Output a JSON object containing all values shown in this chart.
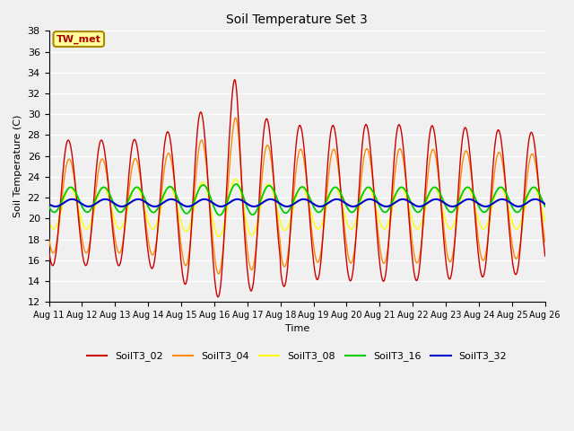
{
  "title": "Soil Temperature Set 3",
  "xlabel": "Time",
  "ylabel": "Soil Temperature (C)",
  "ylim": [
    12,
    38
  ],
  "yticks": [
    12,
    14,
    16,
    18,
    20,
    22,
    24,
    26,
    28,
    30,
    32,
    34,
    36,
    38
  ],
  "bg_color": "#f0f0f0",
  "plot_bg_color": "#f0f0f0",
  "series_colors": {
    "SoilT3_02": "#cc0000",
    "SoilT3_04": "#ff8800",
    "SoilT3_08": "#ffff00",
    "SoilT3_16": "#00cc00",
    "SoilT3_32": "#0000cc"
  },
  "annotation_text": "TW_met",
  "annotation_bg": "#ffff99",
  "annotation_border": "#aa8800",
  "annotation_text_color": "#aa0000",
  "x_tick_labels": [
    "Aug 11",
    "Aug 12",
    "Aug 13",
    "Aug 14",
    "Aug 15",
    "Aug 16",
    "Aug 17",
    "Aug 18",
    "Aug 19",
    "Aug 20",
    "Aug 21",
    "Aug 22",
    "Aug 23",
    "Aug 24",
    "Aug 25",
    "Aug 26"
  ]
}
